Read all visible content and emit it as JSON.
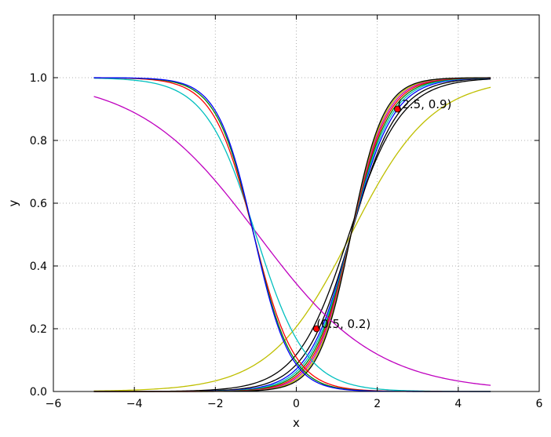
{
  "chart_data": {
    "type": "line",
    "title": "",
    "xlabel": "x",
    "ylabel": "y",
    "xlim": [
      -6,
      6
    ],
    "ylim": [
      0,
      1.2
    ],
    "xticks": [
      -6,
      -4,
      -2,
      0,
      2,
      4,
      6
    ],
    "yticks": [
      0.0,
      0.2,
      0.4,
      0.6,
      0.8,
      1.0
    ],
    "xtick_labels": [
      "−6",
      "−4",
      "−2",
      "0",
      "2",
      "4",
      "6"
    ],
    "ytick_labels": [
      "0.0",
      "0.2",
      "0.4",
      "0.6",
      "0.8",
      "1.0"
    ],
    "grid": true,
    "legend": "none",
    "x_range": [
      -5,
      4.8
    ],
    "series": [
      {
        "kind": "increasing",
        "color": "#bfbf00",
        "x0": 1.35,
        "k": 1.0
      },
      {
        "kind": "increasing",
        "color": "#000000",
        "x0": 1.3,
        "k": 1.55
      },
      {
        "kind": "increasing",
        "color": "#000000",
        "x0": 1.35,
        "k": 1.75
      },
      {
        "kind": "increasing",
        "color": "#0000ff",
        "x0": 1.35,
        "k": 1.9
      },
      {
        "kind": "increasing",
        "color": "#00bfbf",
        "x0": 1.35,
        "k": 2.0
      },
      {
        "kind": "increasing",
        "color": "#008000",
        "x0": 1.35,
        "k": 2.1
      },
      {
        "kind": "increasing",
        "color": "#ff0000",
        "x0": 1.35,
        "k": 2.2
      },
      {
        "kind": "increasing",
        "color": "#bf00bf",
        "x0": 1.35,
        "k": 2.3
      },
      {
        "kind": "increasing",
        "color": "#bfbf00",
        "x0": 1.35,
        "k": 2.4
      },
      {
        "kind": "increasing",
        "color": "#000000",
        "x0": 1.35,
        "k": 2.5
      },
      {
        "kind": "decreasing",
        "color": "#bf00bf",
        "x0": -0.95,
        "k": 0.68
      },
      {
        "kind": "decreasing",
        "color": "#00bfbf",
        "x0": -1.0,
        "k": 1.6
      },
      {
        "kind": "decreasing",
        "color": "#ff0000",
        "x0": -1.05,
        "k": 2.0
      },
      {
        "kind": "decreasing",
        "color": "#008000",
        "x0": -1.05,
        "k": 2.15
      },
      {
        "kind": "decreasing",
        "color": "#0000ff",
        "x0": -1.05,
        "k": 2.25
      }
    ],
    "points": [
      {
        "x": 0.5,
        "y": 0.2,
        "label": "(0.5, 0.2)",
        "color": "#ff0000"
      },
      {
        "x": 2.5,
        "y": 0.9,
        "label": "(2.5, 0.9)",
        "color": "#ff0000"
      }
    ]
  }
}
